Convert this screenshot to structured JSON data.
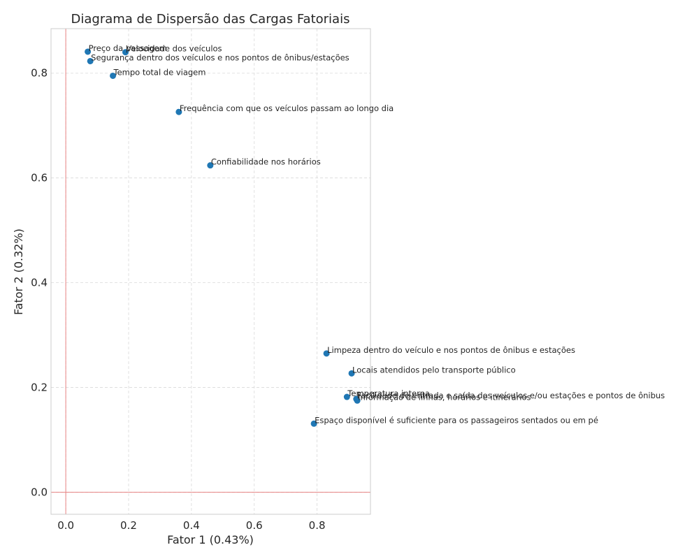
{
  "chart_data": {
    "type": "scatter",
    "title": "Diagrama de Dispersão das Cargas Fatoriais",
    "xlabel": "Fator 1 (0.43%)",
    "ylabel": "Fator 2 (0.32%)",
    "xlim": [
      -0.047,
      0.97
    ],
    "ylim": [
      -0.042,
      0.885
    ],
    "xticks": [
      "0.0",
      "0.2",
      "0.4",
      "0.6",
      "0.8"
    ],
    "yticks": [
      "0.0",
      "0.2",
      "0.4",
      "0.6",
      "0.8"
    ],
    "xtick_values": [
      0.0,
      0.2,
      0.4,
      0.6,
      0.8
    ],
    "ytick_values": [
      0.0,
      0.2,
      0.4,
      0.6,
      0.8
    ],
    "grid": true,
    "reference_lines": {
      "x": 0,
      "y": 0,
      "color": "#e88080"
    },
    "point_color": "#1f77b4",
    "points": [
      {
        "label": "Preço da passagem",
        "x": 0.07,
        "y": 0.841
      },
      {
        "label": "Velocidade dos veículos",
        "x": 0.19,
        "y": 0.84
      },
      {
        "label": "Segurança dentro dos veículos e nos pontos de ônibus/estações",
        "x": 0.078,
        "y": 0.823
      },
      {
        "label": "Tempo total de viagem",
        "x": 0.15,
        "y": 0.795
      },
      {
        "label": "Frequência com que os veículos passam ao longo dia",
        "x": 0.36,
        "y": 0.726
      },
      {
        "label": "Confiabilidade nos horários",
        "x": 0.46,
        "y": 0.624
      },
      {
        "label": "Limpeza dentro do veículo e nos pontos de ônibus e estações",
        "x": 0.83,
        "y": 0.265
      },
      {
        "label": "Locais atendidos pelo transporte público",
        "x": 0.91,
        "y": 0.227
      },
      {
        "label": "Temperatura interna",
        "x": 0.895,
        "y": 0.182
      },
      {
        "label": "Facilidade de entrada e saída dos veículos e/ou estações e pontos de ônibus",
        "x": 0.925,
        "y": 0.178
      },
      {
        "label": "Informação de linhas, horários e itinerários",
        "x": 0.928,
        "y": 0.175
      },
      {
        "label": "Espaço disponível é suficiente para os passageiros sentados ou em pé",
        "x": 0.79,
        "y": 0.131
      }
    ]
  }
}
